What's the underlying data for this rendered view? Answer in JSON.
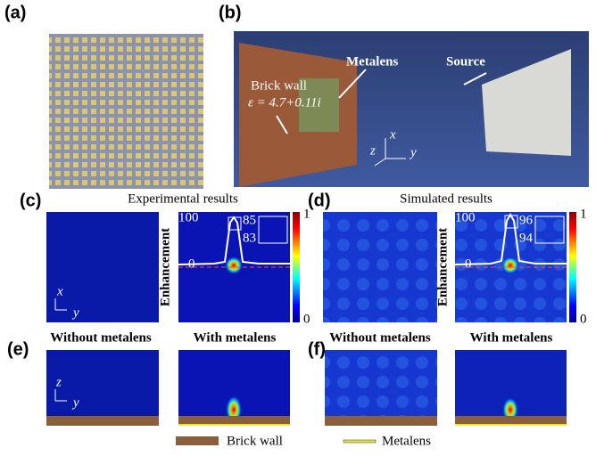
{
  "panels": {
    "a": {
      "label": "(a)"
    },
    "b": {
      "label": "(b)",
      "brick_wall": "Brick wall",
      "permittivity": "ε = 4.7+0.11i",
      "metalens": "Metalens",
      "source": "Source",
      "axis_x": "x",
      "axis_y": "y",
      "axis_z": "z"
    },
    "c": {
      "label": "(c)",
      "title": "Experimental results",
      "axis_x": "x",
      "axis_y": "y",
      "ylabel": "Enhancement",
      "ticks": [
        100,
        0
      ],
      "peak_labels": [
        85,
        83
      ],
      "colorbar": [
        1,
        0
      ]
    },
    "d": {
      "label": "(d)",
      "title": "Simulated results",
      "ylabel": "Enhancement",
      "ticks": [
        100,
        0
      ],
      "peak_labels": [
        96,
        94
      ],
      "colorbar": [
        1,
        0
      ]
    },
    "e": {
      "label": "(e)",
      "left_title": "Without metalens",
      "right_title": "With metalens",
      "axis_z": "z",
      "axis_y": "y"
    },
    "f": {
      "label": "(f)",
      "left_title": "Without metalens",
      "right_title": "With metalens"
    }
  },
  "legend": [
    "Brick wall",
    "Metalens"
  ]
}
